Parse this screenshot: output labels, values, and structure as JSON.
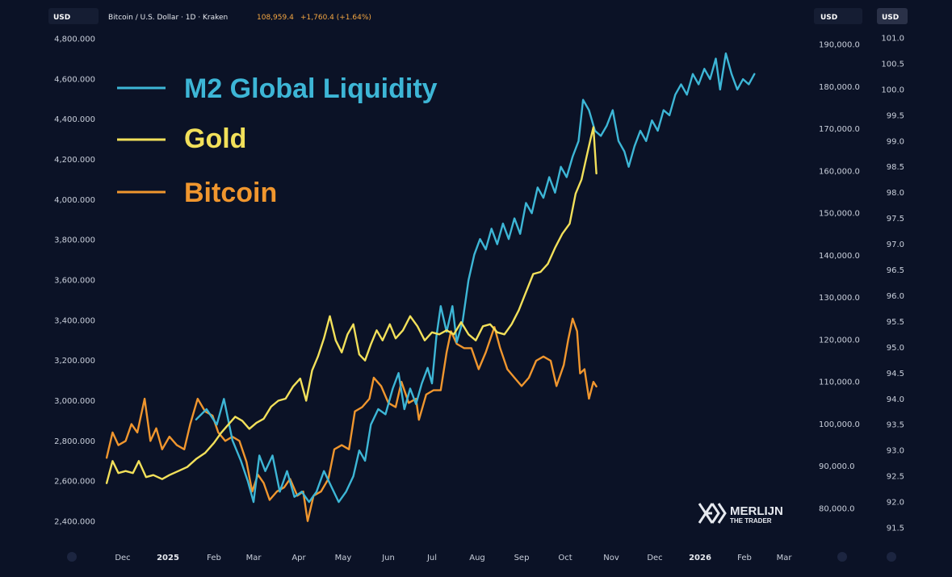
{
  "header": {
    "left_badge": "USD",
    "symbol": "Bitcoin / U.S. Dollar · 1D · Kraken",
    "price": "108,959.4",
    "change": "+1,760.4 (+1.64%)",
    "right_badge_1": "USD",
    "right_badge_2": "USD",
    "change_color": "#f5a742"
  },
  "logo": {
    "line1": "MERLIJN",
    "line2": "THE TRADER"
  },
  "colors": {
    "background": "#0b1226",
    "m2": "#3db6d6",
    "gold": "#f2e05a",
    "bitcoin": "#f0962e"
  },
  "chart_data": {
    "type": "line",
    "legend": [
      {
        "name": "M2 Global Liquidity",
        "color": "#3db6d6"
      },
      {
        "name": "Gold",
        "color": "#f2e05a"
      },
      {
        "name": "Bitcoin",
        "color": "#f0962e"
      }
    ],
    "x_ticks": [
      "Dec",
      "2025",
      "Feb",
      "Mar",
      "Apr",
      "May",
      "Jun",
      "Jul",
      "Aug",
      "Sep",
      "Oct",
      "Nov",
      "Dec",
      "2026",
      "Feb",
      "Mar"
    ],
    "x_ticks_bold": [
      "2025",
      "2026"
    ],
    "y_left": {
      "label": "USD",
      "ticks": [
        "4,800.000",
        "4,600.000",
        "4,400.000",
        "4,200.000",
        "4,000.000",
        "3,800.000",
        "3,600.000",
        "3,400.000",
        "3,200.000",
        "3,000.000",
        "2,800.000",
        "2,600.000",
        "2,400.000"
      ],
      "range": [
        2400,
        4800
      ]
    },
    "y_mid": {
      "label": "USD",
      "ticks": [
        "190,000.0",
        "180,000.0",
        "170,000.0",
        "160,000.0",
        "150,000.0",
        "140,000.0",
        "130,000.0",
        "120,000.0",
        "110,000.0",
        "100,000.0",
        "90,000.0",
        "80,000.0"
      ],
      "range": [
        80000,
        190000
      ]
    },
    "y_right": {
      "label": "USD",
      "ticks": [
        "101.0",
        "100.5",
        "100.0",
        "99.5",
        "99.0",
        "98.5",
        "98.0",
        "97.5",
        "97.0",
        "96.5",
        "96.0",
        "95.5",
        "95.0",
        "94.5",
        "94.0",
        "93.5",
        "93.0",
        "92.5",
        "92.0",
        "91.5"
      ],
      "range": [
        91.5,
        101.0
      ]
    },
    "series": [
      {
        "name": "M2 Global Liquidity",
        "axis": "y_right",
        "points": [
          [
            "2025-01-20",
            93.6
          ],
          [
            "2025-01-27",
            93.8
          ],
          [
            "2025-02-03",
            93.5
          ],
          [
            "2025-02-08",
            94.0
          ],
          [
            "2025-02-14",
            93.2
          ],
          [
            "2025-02-20",
            92.8
          ],
          [
            "2025-02-25",
            92.4
          ],
          [
            "2025-03-01",
            92.0
          ],
          [
            "2025-03-05",
            92.9
          ],
          [
            "2025-03-09",
            92.6
          ],
          [
            "2025-03-14",
            92.9
          ],
          [
            "2025-03-19",
            92.2
          ],
          [
            "2025-03-24",
            92.6
          ],
          [
            "2025-03-29",
            92.1
          ],
          [
            "2025-04-03",
            92.2
          ],
          [
            "2025-04-08",
            92.0
          ],
          [
            "2025-04-13",
            92.2
          ],
          [
            "2025-04-18",
            92.6
          ],
          [
            "2025-04-23",
            92.3
          ],
          [
            "2025-04-28",
            92.0
          ],
          [
            "2025-05-03",
            92.2
          ],
          [
            "2025-05-08",
            92.5
          ],
          [
            "2025-05-12",
            93.0
          ],
          [
            "2025-05-16",
            92.8
          ],
          [
            "2025-05-20",
            93.5
          ],
          [
            "2025-05-25",
            93.8
          ],
          [
            "2025-05-30",
            93.7
          ],
          [
            "2025-06-04",
            94.2
          ],
          [
            "2025-06-08",
            94.5
          ],
          [
            "2025-06-12",
            93.8
          ],
          [
            "2025-06-16",
            94.2
          ],
          [
            "2025-06-20",
            93.9
          ],
          [
            "2025-06-24",
            94.3
          ],
          [
            "2025-06-28",
            94.6
          ],
          [
            "2025-07-01",
            94.3
          ],
          [
            "2025-07-04",
            95.2
          ],
          [
            "2025-07-07",
            95.8
          ],
          [
            "2025-07-11",
            95.3
          ],
          [
            "2025-07-15",
            95.8
          ],
          [
            "2025-07-18",
            95.1
          ],
          [
            "2025-07-22",
            95.5
          ],
          [
            "2025-07-26",
            96.3
          ],
          [
            "2025-07-30",
            96.8
          ],
          [
            "2025-08-03",
            97.1
          ],
          [
            "2025-08-07",
            96.9
          ],
          [
            "2025-08-11",
            97.3
          ],
          [
            "2025-08-15",
            97.0
          ],
          [
            "2025-08-19",
            97.4
          ],
          [
            "2025-08-23",
            97.1
          ],
          [
            "2025-08-27",
            97.5
          ],
          [
            "2025-08-31",
            97.2
          ],
          [
            "2025-09-04",
            97.8
          ],
          [
            "2025-09-08",
            97.6
          ],
          [
            "2025-09-12",
            98.1
          ],
          [
            "2025-09-16",
            97.9
          ],
          [
            "2025-09-20",
            98.3
          ],
          [
            "2025-09-24",
            98.0
          ],
          [
            "2025-09-28",
            98.5
          ],
          [
            "2025-10-02",
            98.3
          ],
          [
            "2025-10-06",
            98.7
          ],
          [
            "2025-10-10",
            99.0
          ],
          [
            "2025-10-13",
            99.8
          ],
          [
            "2025-10-17",
            99.6
          ],
          [
            "2025-10-21",
            99.2
          ],
          [
            "2025-10-25",
            99.1
          ],
          [
            "2025-10-29",
            99.3
          ],
          [
            "2025-11-02",
            99.6
          ],
          [
            "2025-11-06",
            99.0
          ],
          [
            "2025-11-10",
            98.8
          ],
          [
            "2025-11-13",
            98.5
          ],
          [
            "2025-11-17",
            98.9
          ],
          [
            "2025-11-21",
            99.2
          ],
          [
            "2025-11-25",
            99.0
          ],
          [
            "2025-11-29",
            99.4
          ],
          [
            "2025-12-03",
            99.2
          ],
          [
            "2025-12-07",
            99.6
          ],
          [
            "2025-12-11",
            99.5
          ],
          [
            "2025-12-15",
            99.9
          ],
          [
            "2025-12-19",
            100.1
          ],
          [
            "2025-12-23",
            99.9
          ],
          [
            "2025-12-27",
            100.3
          ],
          [
            "2025-12-31",
            100.1
          ],
          [
            "2026-01-04",
            100.4
          ],
          [
            "2026-01-08",
            100.2
          ],
          [
            "2026-01-12",
            100.6
          ],
          [
            "2026-01-15",
            100.0
          ],
          [
            "2026-01-19",
            100.7
          ],
          [
            "2026-01-23",
            100.3
          ],
          [
            "2026-01-27",
            100.0
          ],
          [
            "2026-01-31",
            100.2
          ],
          [
            "2026-02-04",
            100.1
          ],
          [
            "2026-02-08",
            100.3
          ]
        ]
      },
      {
        "name": "Gold",
        "axis": "y_left",
        "points": [
          [
            "2024-11-20",
            2590
          ],
          [
            "2024-11-24",
            2700
          ],
          [
            "2024-11-28",
            2640
          ],
          [
            "2024-12-03",
            2650
          ],
          [
            "2024-12-08",
            2640
          ],
          [
            "2024-12-12",
            2700
          ],
          [
            "2024-12-17",
            2620
          ],
          [
            "2024-12-22",
            2630
          ],
          [
            "2024-12-28",
            2610
          ],
          [
            "2025-01-02",
            2630
          ],
          [
            "2025-01-08",
            2650
          ],
          [
            "2025-01-14",
            2670
          ],
          [
            "2025-01-20",
            2710
          ],
          [
            "2025-01-26",
            2740
          ],
          [
            "2025-02-01",
            2790
          ],
          [
            "2025-02-06",
            2840
          ],
          [
            "2025-02-11",
            2880
          ],
          [
            "2025-02-16",
            2920
          ],
          [
            "2025-02-21",
            2900
          ],
          [
            "2025-02-26",
            2860
          ],
          [
            "2025-03-03",
            2890
          ],
          [
            "2025-03-08",
            2910
          ],
          [
            "2025-03-13",
            2970
          ],
          [
            "2025-03-18",
            3000
          ],
          [
            "2025-03-23",
            3010
          ],
          [
            "2025-03-28",
            3070
          ],
          [
            "2025-04-02",
            3110
          ],
          [
            "2025-04-06",
            3000
          ],
          [
            "2025-04-10",
            3150
          ],
          [
            "2025-04-14",
            3220
          ],
          [
            "2025-04-18",
            3310
          ],
          [
            "2025-04-22",
            3420
          ],
          [
            "2025-04-26",
            3300
          ],
          [
            "2025-04-30",
            3240
          ],
          [
            "2025-05-04",
            3330
          ],
          [
            "2025-05-08",
            3380
          ],
          [
            "2025-05-12",
            3230
          ],
          [
            "2025-05-16",
            3200
          ],
          [
            "2025-05-20",
            3280
          ],
          [
            "2025-05-24",
            3350
          ],
          [
            "2025-05-28",
            3300
          ],
          [
            "2025-06-02",
            3380
          ],
          [
            "2025-06-06",
            3310
          ],
          [
            "2025-06-11",
            3350
          ],
          [
            "2025-06-16",
            3420
          ],
          [
            "2025-06-21",
            3370
          ],
          [
            "2025-06-26",
            3300
          ],
          [
            "2025-07-01",
            3340
          ],
          [
            "2025-07-06",
            3330
          ],
          [
            "2025-07-11",
            3350
          ],
          [
            "2025-07-16",
            3330
          ],
          [
            "2025-07-21",
            3390
          ],
          [
            "2025-07-26",
            3330
          ],
          [
            "2025-07-31",
            3300
          ],
          [
            "2025-08-05",
            3370
          ],
          [
            "2025-08-10",
            3380
          ],
          [
            "2025-08-15",
            3340
          ],
          [
            "2025-08-20",
            3330
          ],
          [
            "2025-08-25",
            3380
          ],
          [
            "2025-08-30",
            3450
          ],
          [
            "2025-09-04",
            3540
          ],
          [
            "2025-09-09",
            3630
          ],
          [
            "2025-09-14",
            3640
          ],
          [
            "2025-09-19",
            3680
          ],
          [
            "2025-09-24",
            3760
          ],
          [
            "2025-09-29",
            3830
          ],
          [
            "2025-10-04",
            3880
          ],
          [
            "2025-10-08",
            4030
          ],
          [
            "2025-10-12",
            4100
          ],
          [
            "2025-10-15",
            4200
          ],
          [
            "2025-10-18",
            4300
          ],
          [
            "2025-10-20",
            4360
          ],
          [
            "2025-10-22",
            4130
          ]
        ]
      },
      {
        "name": "Bitcoin",
        "axis": "y_mid",
        "points": [
          [
            "2024-11-20",
            92000
          ],
          [
            "2024-11-24",
            98000
          ],
          [
            "2024-11-28",
            95000
          ],
          [
            "2024-12-03",
            96000
          ],
          [
            "2024-12-07",
            100000
          ],
          [
            "2024-12-11",
            98000
          ],
          [
            "2024-12-16",
            106000
          ],
          [
            "2024-12-20",
            96000
          ],
          [
            "2024-12-24",
            99000
          ],
          [
            "2024-12-28",
            94000
          ],
          [
            "2025-01-02",
            97000
          ],
          [
            "2025-01-07",
            95000
          ],
          [
            "2025-01-12",
            94000
          ],
          [
            "2025-01-16",
            100000
          ],
          [
            "2025-01-21",
            106000
          ],
          [
            "2025-01-26",
            103000
          ],
          [
            "2025-01-31",
            102000
          ],
          [
            "2025-02-04",
            98000
          ],
          [
            "2025-02-09",
            96000
          ],
          [
            "2025-02-14",
            97000
          ],
          [
            "2025-02-19",
            96000
          ],
          [
            "2025-02-24",
            91000
          ],
          [
            "2025-02-28",
            84000
          ],
          [
            "2025-03-04",
            88000
          ],
          [
            "2025-03-08",
            86000
          ],
          [
            "2025-03-12",
            82000
          ],
          [
            "2025-03-17",
            84000
          ],
          [
            "2025-03-22",
            85000
          ],
          [
            "2025-03-26",
            87000
          ],
          [
            "2025-03-31",
            83000
          ],
          [
            "2025-04-04",
            84000
          ],
          [
            "2025-04-07",
            77000
          ],
          [
            "2025-04-11",
            83000
          ],
          [
            "2025-04-16",
            84000
          ],
          [
            "2025-04-21",
            87000
          ],
          [
            "2025-04-25",
            94000
          ],
          [
            "2025-04-30",
            95000
          ],
          [
            "2025-05-05",
            94000
          ],
          [
            "2025-05-09",
            103000
          ],
          [
            "2025-05-14",
            104000
          ],
          [
            "2025-05-19",
            106000
          ],
          [
            "2025-05-22",
            111000
          ],
          [
            "2025-05-27",
            109000
          ],
          [
            "2025-06-01",
            105000
          ],
          [
            "2025-06-06",
            104000
          ],
          [
            "2025-06-10",
            110000
          ],
          [
            "2025-06-15",
            105000
          ],
          [
            "2025-06-20",
            106000
          ],
          [
            "2025-06-22",
            101000
          ],
          [
            "2025-06-27",
            107000
          ],
          [
            "2025-07-02",
            108000
          ],
          [
            "2025-07-07",
            108000
          ],
          [
            "2025-07-11",
            117000
          ],
          [
            "2025-07-14",
            122000
          ],
          [
            "2025-07-18",
            119000
          ],
          [
            "2025-07-23",
            118000
          ],
          [
            "2025-07-28",
            118000
          ],
          [
            "2025-08-02",
            113000
          ],
          [
            "2025-08-07",
            117000
          ],
          [
            "2025-08-13",
            123000
          ],
          [
            "2025-08-17",
            118000
          ],
          [
            "2025-08-22",
            113000
          ],
          [
            "2025-08-27",
            111000
          ],
          [
            "2025-09-01",
            109000
          ],
          [
            "2025-09-06",
            111000
          ],
          [
            "2025-09-11",
            115000
          ],
          [
            "2025-09-16",
            116000
          ],
          [
            "2025-09-21",
            115000
          ],
          [
            "2025-09-25",
            109000
          ],
          [
            "2025-09-30",
            114000
          ],
          [
            "2025-10-03",
            120000
          ],
          [
            "2025-10-06",
            125000
          ],
          [
            "2025-10-09",
            122000
          ],
          [
            "2025-10-11",
            112000
          ],
          [
            "2025-10-14",
            113000
          ],
          [
            "2025-10-17",
            106000
          ],
          [
            "2025-10-20",
            110000
          ],
          [
            "2025-10-22",
            108900
          ]
        ]
      }
    ]
  }
}
